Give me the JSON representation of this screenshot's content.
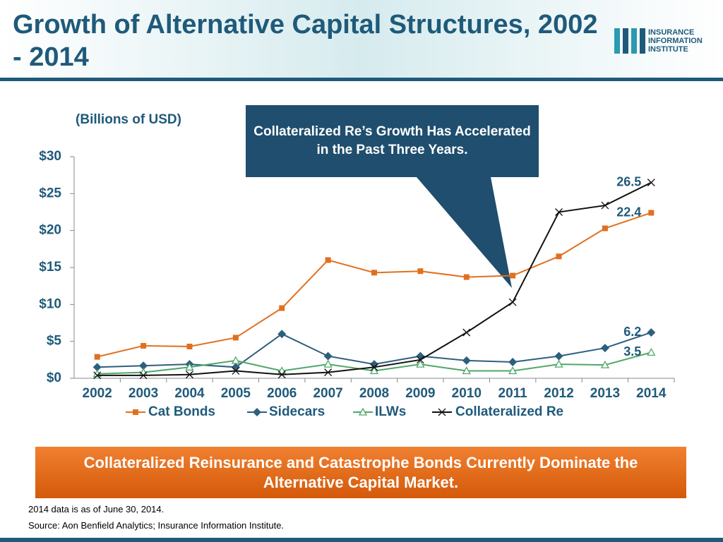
{
  "header": {
    "title": "Growth of Alternative Capital Structures, 2002 - 2014",
    "logo": [
      "INSURANCE",
      "INFORMATION",
      "INSTITUTE"
    ]
  },
  "chart_data": {
    "type": "line",
    "y_label": "(Billions of USD)",
    "categories": [
      "2002",
      "2003",
      "2004",
      "2005",
      "2006",
      "2007",
      "2008",
      "2009",
      "2010",
      "2011",
      "2012",
      "2013",
      "2014"
    ],
    "series": [
      {
        "name": "Cat Bonds",
        "color": "#e07020",
        "marker": "square",
        "values": [
          2.9,
          4.4,
          4.3,
          5.5,
          9.5,
          16.0,
          14.3,
          14.5,
          13.7,
          13.9,
          16.5,
          20.3,
          22.4
        ]
      },
      {
        "name": "Sidecars",
        "color": "#2e5f7e",
        "marker": "diamond",
        "values": [
          1.5,
          1.7,
          1.9,
          1.5,
          6.0,
          3.0,
          1.9,
          3.0,
          2.4,
          2.2,
          3.0,
          4.1,
          6.2
        ]
      },
      {
        "name": "ILWs",
        "color": "#4fa868",
        "marker": "triangle",
        "values": [
          0.6,
          0.8,
          1.5,
          2.4,
          1.0,
          1.9,
          1.0,
          1.9,
          1.0,
          1.0,
          1.9,
          1.8,
          3.5
        ]
      },
      {
        "name": "Collateralized Re",
        "color": "#111111",
        "marker": "x",
        "values": [
          0.4,
          0.4,
          0.5,
          1.0,
          0.5,
          0.8,
          1.5,
          2.5,
          6.2,
          10.3,
          22.5,
          23.4,
          26.5
        ]
      }
    ],
    "ylim": [
      0,
      30
    ],
    "yticks": [
      {
        "value": 0,
        "label": "$0"
      },
      {
        "value": 5,
        "label": "$5"
      },
      {
        "value": 10,
        "label": "$10"
      },
      {
        "value": 15,
        "label": "$15"
      },
      {
        "value": 20,
        "label": "$20"
      },
      {
        "value": 25,
        "label": "$25"
      },
      {
        "value": 30,
        "label": "$30"
      }
    ],
    "callout": "Collateralized Re’s Growth Has Accelerated in the Past Three Years."
  },
  "banner": "Collateralized Reinsurance and Catastrophe Bonds Currently Dominate the Alternative Capital Market.",
  "footnotes": [
    "2014 data is as of June 30, 2014.",
    "Source: Aon Benfield Analytics; Insurance Information Institute."
  ]
}
